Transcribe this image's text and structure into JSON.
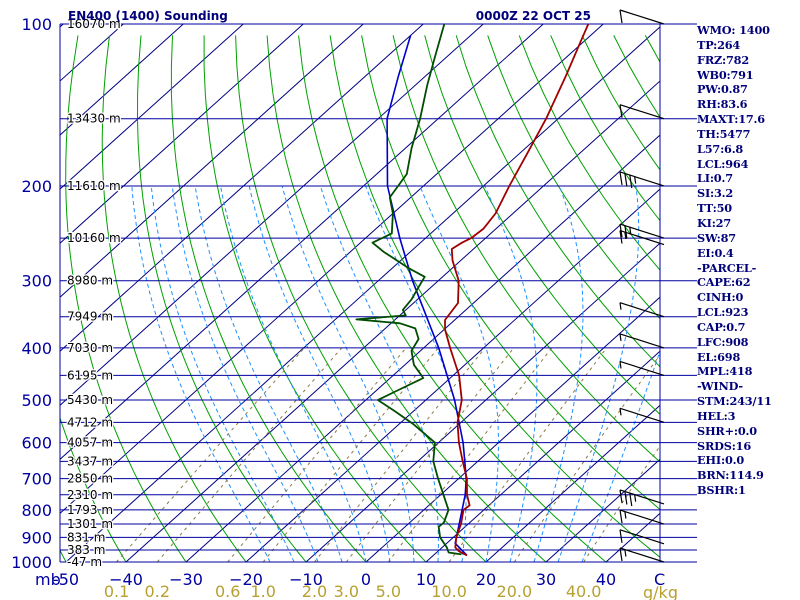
{
  "header": {
    "title": "EN400 (1400) Sounding",
    "date": "0000Z 22 OCT 25"
  },
  "colors": {
    "isobar": "#0000a0",
    "isotherm": "#000080",
    "dry_adiabat": "#00a000",
    "moist_adiabat": "#1e90ff",
    "mixing_ratio": "#8a7a44",
    "temperature": "#a00000",
    "dewpoint": "#004d00",
    "parcel": "#0000cc",
    "axis_text": "#0000a0",
    "mixing_text": "#b8a030",
    "wind": "#000000",
    "panel_text": "#00007a"
  },
  "chart_data": {
    "type": "skew-t",
    "title": "EN400 (1400) Sounding",
    "xlabel": "C",
    "ylabel": "mb",
    "pressure_axis_label": "mb",
    "temperature_unit": "C",
    "mixing_ratio_unit": "g/kg",
    "pressure_range_mb": [
      1000,
      100
    ],
    "temperature_range_c": [
      -50,
      50
    ],
    "pressure_ticks": [
      100,
      200,
      300,
      400,
      500,
      600,
      700,
      800,
      900,
      1000
    ],
    "pressure_tick_labels": [
      "100",
      "200",
      "300",
      "400",
      "500",
      "600",
      "700",
      "800",
      "900",
      "1000"
    ],
    "temperature_ticks": [
      -50,
      -40,
      -30,
      -20,
      -10,
      0,
      10,
      20,
      30,
      40
    ],
    "temperature_tick_labels": [
      "-50",
      "−40",
      "−30",
      "−20",
      "−10",
      "0",
      "10",
      "20",
      "30",
      "40"
    ],
    "mixing_ratio_values": [
      0.1,
      0.2,
      0.6,
      1.0,
      2.0,
      3.0,
      5.0,
      10.0,
      20.0,
      40.0
    ],
    "mixing_ratio_labels": [
      "0.1",
      "0.2",
      "0.6",
      "1.0",
      "2.0",
      "3.0",
      "5.0",
      "10.0",
      "20.0",
      "40.0"
    ],
    "height_levels": [
      {
        "p": 100,
        "label": "16070 m"
      },
      {
        "p": 150,
        "label": "13430 m"
      },
      {
        "p": 200,
        "label": "11610 m"
      },
      {
        "p": 250,
        "label": "10160 m"
      },
      {
        "p": 300,
        "label": "8980 m"
      },
      {
        "p": 350,
        "label": "7949 m"
      },
      {
        "p": 400,
        "label": "7030 m"
      },
      {
        "p": 450,
        "label": "6195 m"
      },
      {
        "p": 500,
        "label": "5430 m"
      },
      {
        "p": 550,
        "label": "4712 m"
      },
      {
        "p": 600,
        "label": "4057 m"
      },
      {
        "p": 650,
        "label": "3437 m"
      },
      {
        "p": 700,
        "label": "2850 m"
      },
      {
        "p": 750,
        "label": "2310 m"
      },
      {
        "p": 800,
        "label": "1793 m"
      },
      {
        "p": 850,
        "label": "1301 m"
      },
      {
        "p": 900,
        "label": "831 m"
      },
      {
        "p": 950,
        "label": "383 m"
      },
      {
        "p": 1000,
        "label": "-47 m"
      }
    ],
    "series": [
      {
        "name": "Temperature",
        "points": [
          {
            "p": 972,
            "t": 15.6
          },
          {
            "p": 955,
            "t": 13.5
          },
          {
            "p": 940,
            "t": 12.2
          },
          {
            "p": 900,
            "t": 10.5
          },
          {
            "p": 850,
            "t": 8.8
          },
          {
            "p": 800,
            "t": 6.6
          },
          {
            "p": 785,
            "t": 6.8
          },
          {
            "p": 750,
            "t": 4.4
          },
          {
            "p": 700,
            "t": 1.4
          },
          {
            "p": 650,
            "t": -2.5
          },
          {
            "p": 600,
            "t": -6.6
          },
          {
            "p": 550,
            "t": -10.6
          },
          {
            "p": 500,
            "t": -14.0
          },
          {
            "p": 450,
            "t": -19.0
          },
          {
            "p": 400,
            "t": -25.6
          },
          {
            "p": 370,
            "t": -29.8
          },
          {
            "p": 355,
            "t": -31.6
          },
          {
            "p": 330,
            "t": -32.6
          },
          {
            "p": 300,
            "t": -36.6
          },
          {
            "p": 275,
            "t": -41.4
          },
          {
            "p": 262,
            "t": -43.6
          },
          {
            "p": 255,
            "t": -43.1
          },
          {
            "p": 250,
            "t": -42.4
          },
          {
            "p": 240,
            "t": -42.1
          },
          {
            "p": 225,
            "t": -42.9
          },
          {
            "p": 200,
            "t": -45.7
          },
          {
            "p": 175,
            "t": -48.6
          },
          {
            "p": 150,
            "t": -52.0
          },
          {
            "p": 125,
            "t": -56.6
          },
          {
            "p": 110,
            "t": -60.0
          },
          {
            "p": 100,
            "t": -62.5
          }
        ]
      },
      {
        "name": "Dewpoint",
        "points": [
          {
            "p": 968,
            "t": 14.5
          },
          {
            "p": 960,
            "t": 12.0
          },
          {
            "p": 940,
            "t": 10.8
          },
          {
            "p": 900,
            "t": 7.8
          },
          {
            "p": 860,
            "t": 5.6
          },
          {
            "p": 845,
            "t": 5.7
          },
          {
            "p": 800,
            "t": 4.1
          },
          {
            "p": 700,
            "t": -3.4
          },
          {
            "p": 650,
            "t": -7.4
          },
          {
            "p": 600,
            "t": -10.6
          },
          {
            "p": 555,
            "t": -17.5
          },
          {
            "p": 525,
            "t": -23.0
          },
          {
            "p": 500,
            "t": -28.0
          },
          {
            "p": 480,
            "t": -26.5
          },
          {
            "p": 455,
            "t": -24.5
          },
          {
            "p": 430,
            "t": -28.5
          },
          {
            "p": 405,
            "t": -31.5
          },
          {
            "p": 385,
            "t": -32.5
          },
          {
            "p": 368,
            "t": -35.0
          },
          {
            "p": 360,
            "t": -38.5
          },
          {
            "p": 354,
            "t": -46.5
          },
          {
            "p": 348,
            "t": -39.0
          },
          {
            "p": 340,
            "t": -40.5
          },
          {
            "p": 325,
            "t": -41.0
          },
          {
            "p": 310,
            "t": -42.0
          },
          {
            "p": 295,
            "t": -43.0
          },
          {
            "p": 285,
            "t": -47.0
          },
          {
            "p": 265,
            "t": -54.5
          },
          {
            "p": 255,
            "t": -58.0
          },
          {
            "p": 245,
            "t": -56.5
          },
          {
            "p": 225,
            "t": -60.0
          },
          {
            "p": 210,
            "t": -63.5
          },
          {
            "p": 190,
            "t": -65.0
          },
          {
            "p": 170,
            "t": -69.0
          },
          {
            "p": 150,
            "t": -73.0
          },
          {
            "p": 130,
            "t": -78.0
          },
          {
            "p": 115,
            "t": -82.0
          },
          {
            "p": 100,
            "t": -86.5
          }
        ]
      },
      {
        "name": "Parcel",
        "points": [
          {
            "p": 972,
            "t": 15.6
          },
          {
            "p": 923,
            "t": 11.4
          },
          {
            "p": 850,
            "t": 8.5
          },
          {
            "p": 750,
            "t": 4.1
          },
          {
            "p": 700,
            "t": 1.3
          },
          {
            "p": 600,
            "t": -5.9
          },
          {
            "p": 500,
            "t": -15.2
          },
          {
            "p": 400,
            "t": -27.5
          },
          {
            "p": 300,
            "t": -44.3
          },
          {
            "p": 250,
            "t": -54.3
          },
          {
            "p": 200,
            "t": -66.0
          },
          {
            "p": 150,
            "t": -78.5
          },
          {
            "p": 125,
            "t": -84.5
          },
          {
            "p": 105,
            "t": -90.0
          }
        ]
      }
    ],
    "wind_barbs": [
      {
        "p": 100,
        "speed_kt": 10
      },
      {
        "p": 150,
        "speed_kt": 10
      },
      {
        "p": 200,
        "speed_kt": 35
      },
      {
        "p": 250,
        "speed_kt": 25
      },
      {
        "p": 257,
        "speed_kt": 15
      },
      {
        "p": 350,
        "speed_kt": 5
      },
      {
        "p": 400,
        "speed_kt": 5
      },
      {
        "p": 450,
        "speed_kt": 5
      },
      {
        "p": 550,
        "speed_kt": 5
      },
      {
        "p": 780,
        "speed_kt": 35
      },
      {
        "p": 850,
        "speed_kt": 15
      },
      {
        "p": 925,
        "speed_kt": 10
      },
      {
        "p": 1000,
        "speed_kt": 15
      }
    ]
  },
  "side_panel": [
    "WMO: 1400",
    "TP:264",
    "FRZ:782",
    "WB0:791",
    "PW:0.87",
    "RH:83.6",
    "MAXT:17.6",
    "TH:5477",
    "L57:6.8",
    "LCL:964",
    "LI:0.7",
    "SI:3.2",
    "TT:50",
    "KI:27",
    "SW:87",
    "EI:0.4",
    "-PARCEL-",
    "CAPE:62",
    "CINH:0",
    "LCL:923",
    "CAP:0.7",
    "LFC:908",
    "EL:698",
    "MPL:418",
    "-WIND-",
    "STM:243/11",
    "HEL:3",
    "SHR+:0.0",
    "SRDS:16",
    "EHI:0.0",
    "BRN:114.9",
    "BSHR:1"
  ]
}
